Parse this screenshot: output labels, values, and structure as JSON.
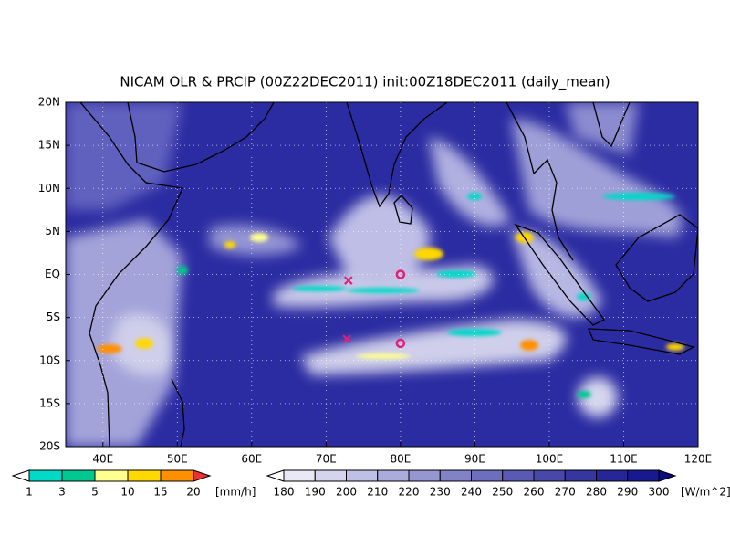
{
  "chart_data": {
    "type": "map",
    "title": "NICAM OLR & PRCIP (00Z22DEC2011) init:00Z18DEC2011 (daily_mean)",
    "xlim": [
      35,
      120
    ],
    "ylim": [
      -20,
      20
    ],
    "xticks": [
      {
        "value": 40,
        "label": "40E"
      },
      {
        "value": 50,
        "label": "50E"
      },
      {
        "value": 60,
        "label": "60E"
      },
      {
        "value": 70,
        "label": "70E"
      },
      {
        "value": 80,
        "label": "80E"
      },
      {
        "value": 90,
        "label": "90E"
      },
      {
        "value": 100,
        "label": "100E"
      },
      {
        "value": 110,
        "label": "110E"
      },
      {
        "value": 120,
        "label": "120E"
      }
    ],
    "yticks": [
      {
        "value": -20,
        "label": "20S"
      },
      {
        "value": -15,
        "label": "15S"
      },
      {
        "value": -10,
        "label": "10S"
      },
      {
        "value": -5,
        "label": "5S"
      },
      {
        "value": 0,
        "label": "EQ"
      },
      {
        "value": 5,
        "label": "5N"
      },
      {
        "value": 10,
        "label": "10N"
      },
      {
        "value": 15,
        "label": "15N"
      },
      {
        "value": 20,
        "label": "20N"
      }
    ],
    "grid": true,
    "markers": [
      {
        "lon": 73,
        "lat": -0.7,
        "symbol": "x",
        "color": "#e0207a"
      },
      {
        "lon": 72.8,
        "lat": -7.5,
        "symbol": "x",
        "color": "#e0207a"
      },
      {
        "lon": 80,
        "lat": 0,
        "symbol": "o",
        "color": "#e0207a"
      },
      {
        "lon": 80,
        "lat": -8,
        "symbol": "o",
        "color": "#e0207a"
      }
    ],
    "colorbars": [
      {
        "levels": [
          1,
          3,
          5,
          10,
          15,
          20
        ],
        "unit": "[mm/h]",
        "colors": [
          "#ffffff",
          "#00d8c8",
          "#00c890",
          "#ffff90",
          "#ffd800",
          "#ff9000",
          "#f03030"
        ]
      },
      {
        "levels": [
          180,
          190,
          200,
          210,
          220,
          230,
          240,
          250,
          260,
          270,
          280,
          290,
          300
        ],
        "unit": "[W/m^2]",
        "colors": [
          "#ffffff",
          "#e8e8f6",
          "#d4d4ee",
          "#c0c0e6",
          "#ababdc",
          "#9696d2",
          "#8282c8",
          "#6e6ebe",
          "#5a5ab4",
          "#4848aa",
          "#3636a0",
          "#262698",
          "#181890",
          "#0c0c80"
        ]
      }
    ]
  }
}
